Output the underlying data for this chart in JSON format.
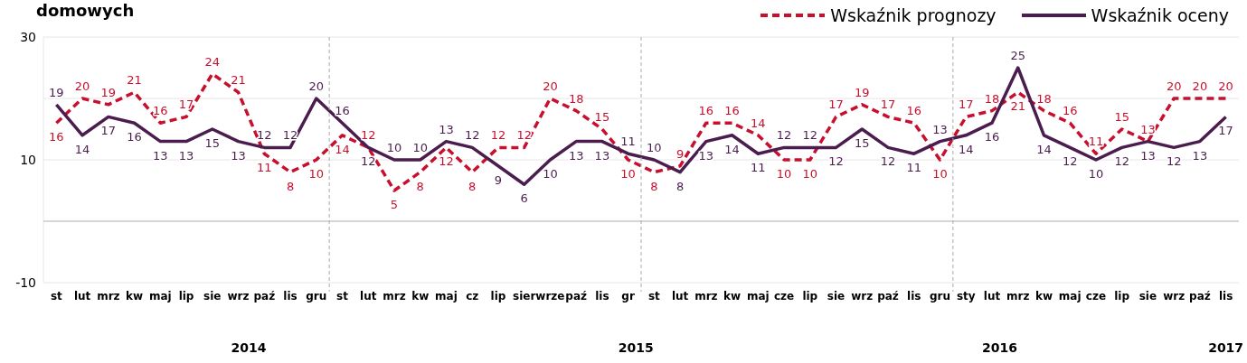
{
  "chart_data": {
    "type": "line",
    "title": "domowych",
    "categories": [
      "st",
      "lut",
      "mrz",
      "kw",
      "maj",
      "lip",
      "sie",
      "wrz",
      "paź",
      "lis",
      "gru",
      "st",
      "lut",
      "mrz",
      "kw",
      "maj",
      "cz",
      "lip",
      "sier",
      "wrze",
      "paź",
      "lis",
      "gr",
      "st",
      "lut",
      "mrz",
      "kw",
      "maj",
      "cze",
      "lip",
      "sie",
      "wrz",
      "paź",
      "lis",
      "gru",
      "sty",
      "lut",
      "mrz",
      "kw",
      "maj",
      "cze",
      "lip",
      "sie",
      "wrz",
      "paź",
      "lis"
    ],
    "series": [
      {
        "name": "Wskaźnik prognozy",
        "color": "#c8102e",
        "line_style": "dashed",
        "values": [
          16,
          20,
          19,
          21,
          16,
          17,
          24,
          21,
          11,
          8,
          10,
          14,
          12,
          5,
          8,
          12,
          8,
          12,
          12,
          20,
          18,
          15,
          10,
          8,
          9,
          16,
          16,
          14,
          10,
          10,
          17,
          19,
          17,
          16,
          10,
          17,
          18,
          21,
          18,
          16,
          11,
          15,
          13,
          20,
          20,
          20
        ]
      },
      {
        "name": "Wskaźnik oceny",
        "color": "#4b1d4f",
        "line_style": "solid",
        "values": [
          19,
          14,
          17,
          16,
          13,
          13,
          15,
          13,
          12,
          12,
          20,
          16,
          12,
          10,
          10,
          13,
          12,
          9,
          6,
          10,
          13,
          13,
          11,
          10,
          8,
          13,
          14,
          11,
          12,
          12,
          12,
          15,
          12,
          11,
          13,
          14,
          16,
          25,
          14,
          12,
          10,
          12,
          13,
          12,
          13,
          17
        ]
      }
    ],
    "annotations": [
      "2014",
      "2015",
      "2016",
      "2017"
    ],
    "ylim": [
      -10,
      30
    ],
    "yticks": [
      -10,
      {
        "value": 0,
        "label": null
      },
      10,
      {
        "value": 20,
        "label": null
      },
      30
    ],
    "grid": "y",
    "legend": "top right",
    "marker": "none",
    "data_labels": true
  }
}
